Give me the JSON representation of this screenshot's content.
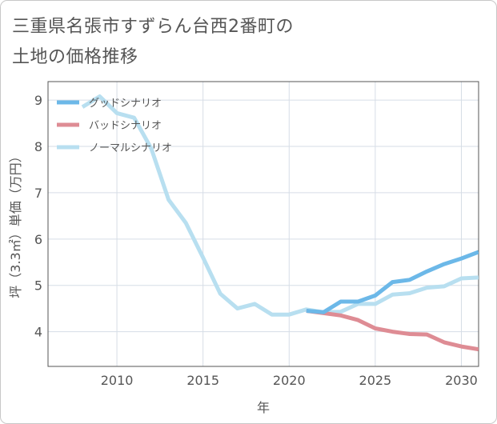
{
  "title": "三重県名張市すずらん台西2番町の\n土地の価格推移",
  "chart_data": {
    "type": "line",
    "xlabel": "年",
    "ylabel": "坪（3.3㎡）単価（万円）",
    "xlim": [
      2006,
      2031
    ],
    "ylim": [
      3.25,
      9.4
    ],
    "xticks": [
      2010,
      2015,
      2020,
      2025,
      2030
    ],
    "yticks": [
      4,
      5,
      6,
      7,
      8,
      9
    ],
    "grid": true,
    "legend_position": "top-left",
    "series": [
      {
        "name": "グッドシナリオ",
        "color": "#6cb8e8",
        "x": [
          2021,
          2022,
          2023,
          2024,
          2025,
          2026,
          2027,
          2028,
          2029,
          2030,
          2031
        ],
        "y": [
          4.45,
          4.42,
          4.65,
          4.65,
          4.78,
          5.07,
          5.12,
          5.3,
          5.46,
          5.58,
          5.72
        ]
      },
      {
        "name": "バッドシナリオ",
        "color": "#de8c94",
        "x": [
          2021,
          2022,
          2023,
          2024,
          2025,
          2026,
          2027,
          2028,
          2029,
          2030,
          2031
        ],
        "y": [
          4.45,
          4.4,
          4.35,
          4.25,
          4.07,
          4.0,
          3.95,
          3.94,
          3.77,
          3.68,
          3.62
        ]
      },
      {
        "name": "ノーマルシナリオ",
        "color": "#b8dff0",
        "x": [
          2008,
          2009,
          2010,
          2011,
          2012,
          2013,
          2014,
          2015,
          2016,
          2017,
          2018,
          2019,
          2020,
          2021,
          2022,
          2023,
          2024,
          2025,
          2026,
          2027,
          2028,
          2029,
          2030,
          2031
        ],
        "y": [
          8.85,
          9.08,
          8.72,
          8.62,
          7.95,
          6.85,
          6.35,
          5.6,
          4.82,
          4.5,
          4.6,
          4.37,
          4.37,
          4.48,
          4.42,
          4.43,
          4.6,
          4.6,
          4.8,
          4.83,
          4.95,
          4.98,
          5.15,
          5.17
        ]
      }
    ]
  }
}
